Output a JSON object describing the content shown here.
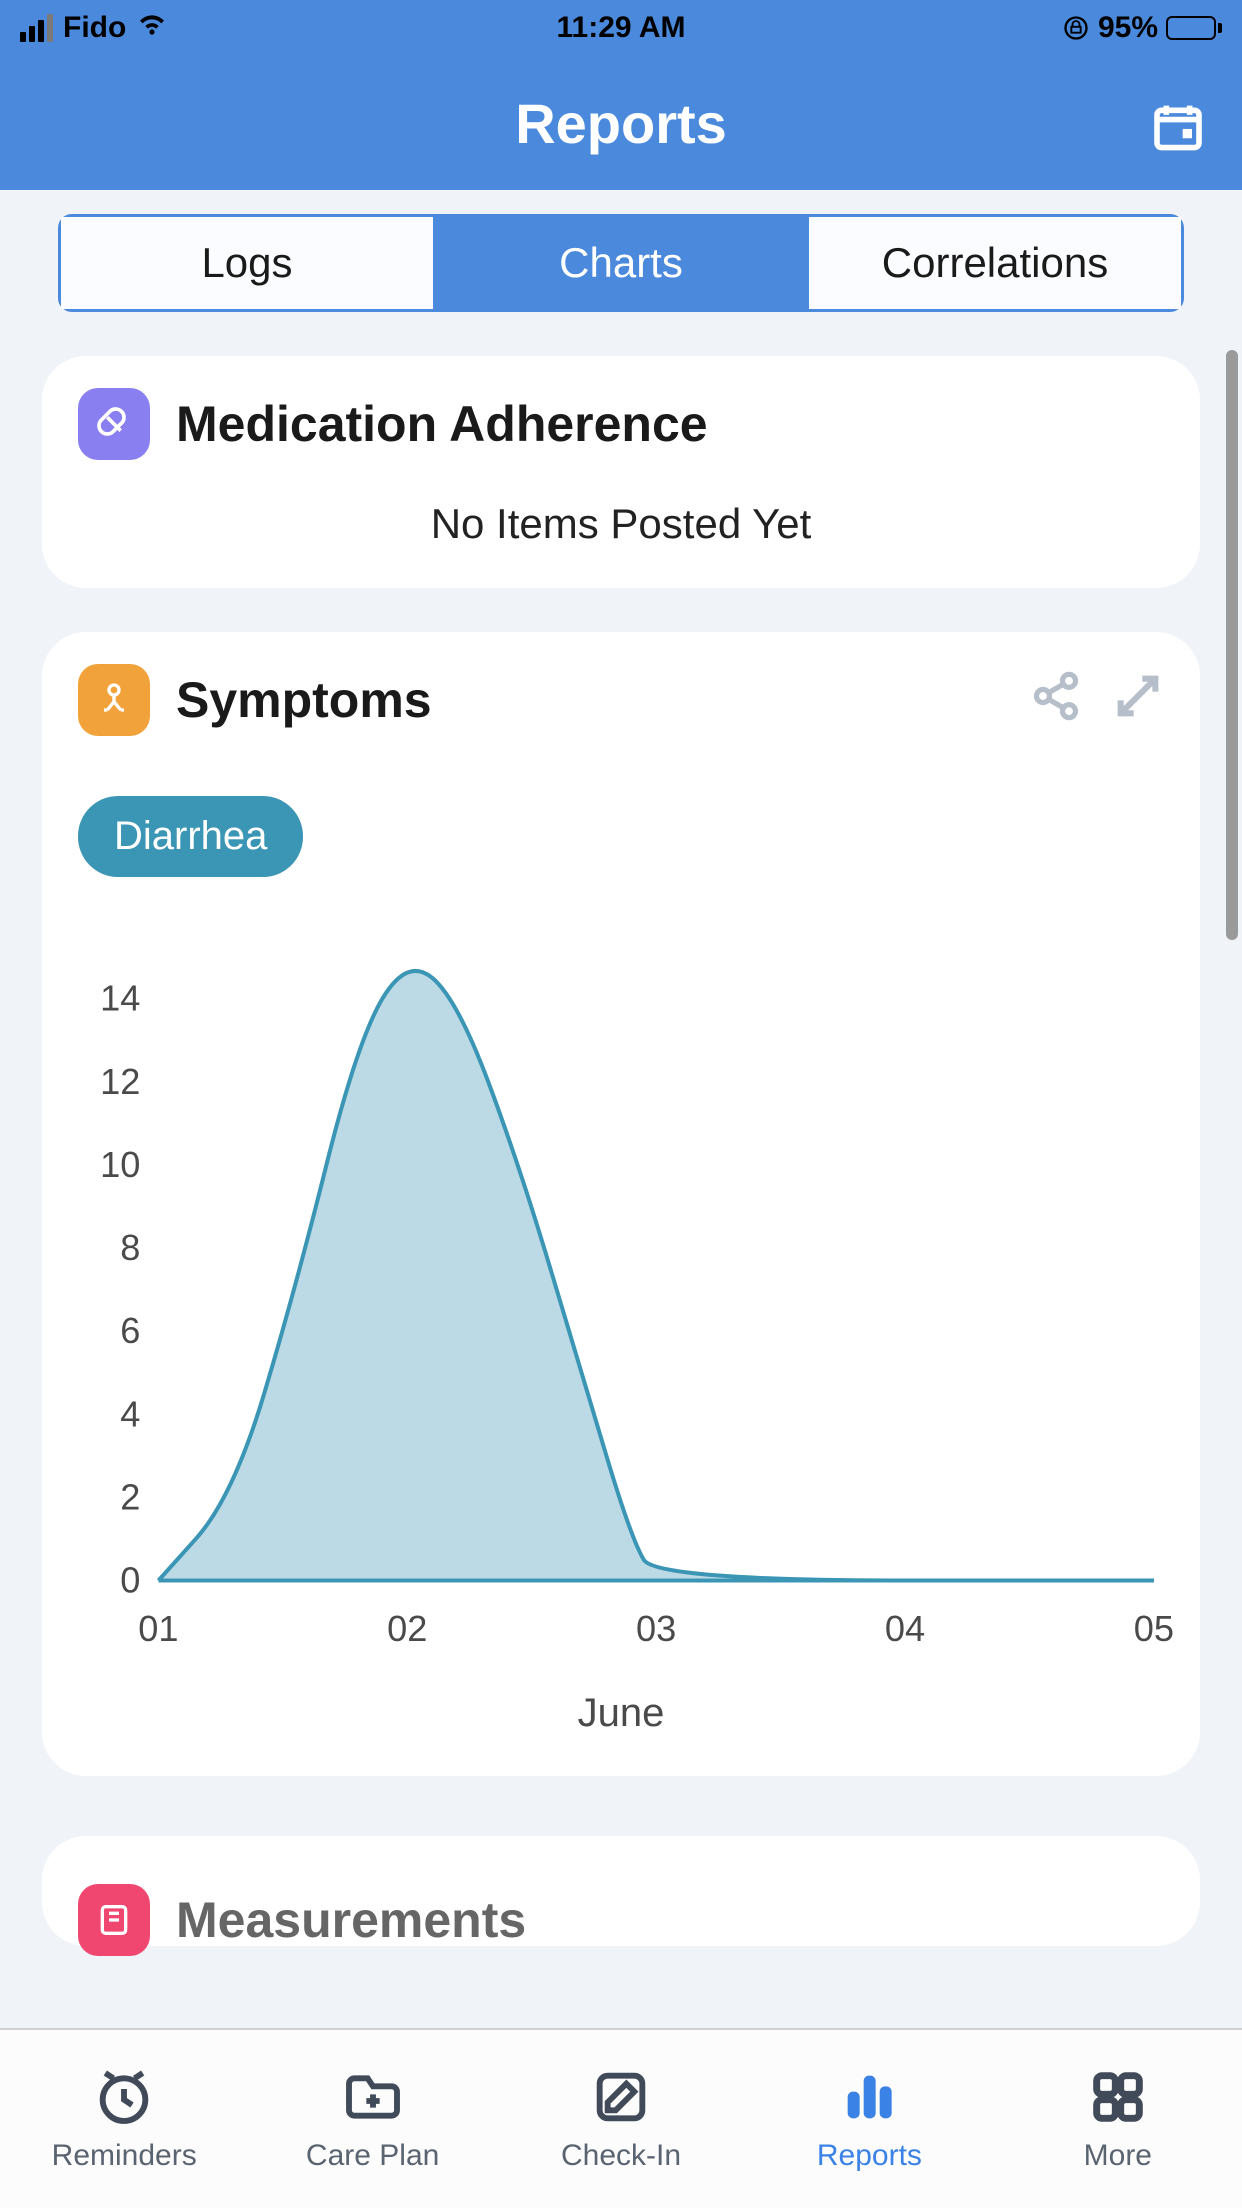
{
  "status_bar": {
    "carrier": "Fido",
    "time": "11:29 AM",
    "battery_pct": "95%",
    "battery_fill_pct": 95
  },
  "header": {
    "title": "Reports"
  },
  "segmented": {
    "items": [
      "Logs",
      "Charts",
      "Correlations"
    ],
    "active_index": 1
  },
  "cards": {
    "medication": {
      "title": "Medication Adherence",
      "empty_text": "No Items Posted Yet",
      "icon_bg": "#8a7ff0"
    },
    "symptoms": {
      "title": "Symptoms",
      "icon_bg": "#f2a23a",
      "chip_label": "Diarrhea",
      "chip_bg": "#3b95b5",
      "chart": {
        "type": "area",
        "x_labels": [
          "01",
          "02",
          "03",
          "04",
          "05"
        ],
        "x_positions": [
          0,
          1,
          2,
          3,
          4
        ],
        "y_ticks": [
          0,
          2,
          4,
          6,
          8,
          10,
          12,
          14
        ],
        "ylim": [
          0,
          15
        ],
        "x_axis_title": "June",
        "series": {
          "points": [
            {
              "x": 0.0,
              "y": 0
            },
            {
              "x": 0.3,
              "y": 2
            },
            {
              "x": 0.55,
              "y": 7
            },
            {
              "x": 0.8,
              "y": 13
            },
            {
              "x": 1.0,
              "y": 15
            },
            {
              "x": 1.2,
              "y": 14
            },
            {
              "x": 1.45,
              "y": 10
            },
            {
              "x": 1.7,
              "y": 5
            },
            {
              "x": 1.9,
              "y": 1
            },
            {
              "x": 2.0,
              "y": 0
            },
            {
              "x": 4.0,
              "y": 0
            }
          ],
          "stroke_color": "#3b95b5",
          "stroke_width": 4,
          "fill_color": "#bcdae6",
          "fill_opacity": 1
        },
        "axis_text_color": "#4a4a4a",
        "axis_font_size": 36,
        "background_color": "#ffffff"
      }
    },
    "measurements": {
      "title": "Measurements",
      "icon_bg": "#ef476f"
    }
  },
  "tabbar": {
    "items": [
      {
        "label": "Reminders",
        "icon": "clock"
      },
      {
        "label": "Care Plan",
        "icon": "folder-plus"
      },
      {
        "label": "Check-In",
        "icon": "edit"
      },
      {
        "label": "Reports",
        "icon": "bars"
      },
      {
        "label": "More",
        "icon": "grid"
      }
    ],
    "active_index": 3,
    "inactive_color": "#404a58",
    "active_color": "#3b82e6"
  }
}
